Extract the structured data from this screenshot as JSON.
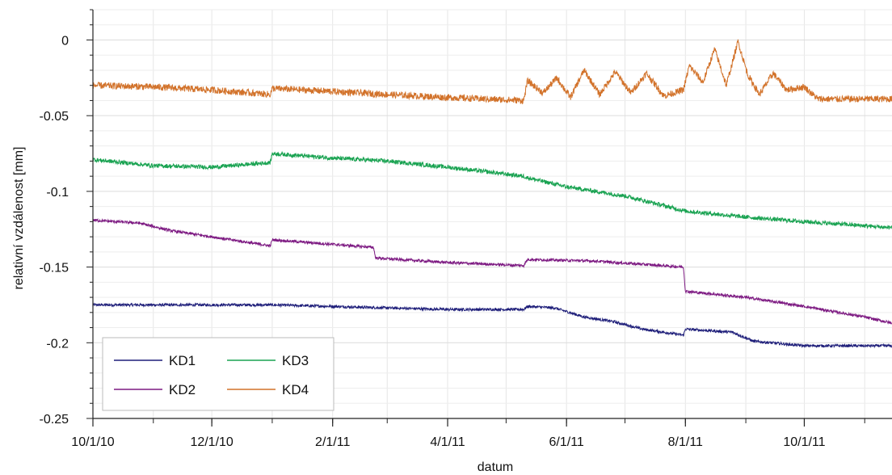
{
  "chart_data": {
    "type": "line",
    "title": "",
    "xlabel": "datum",
    "ylabel": "relativní vzdálenost [mm]",
    "xlim": [
      "2010-10-01",
      "2011-11-15"
    ],
    "ylim": [
      -0.25,
      0.02
    ],
    "grid": true,
    "legend_position": "bottom-left",
    "x_tick_labels": [
      "10/1/10",
      "12/1/10",
      "2/1/11",
      "4/1/11",
      "6/1/11",
      "8/1/11",
      "10/1/11"
    ],
    "x_tick_dates": [
      "2010-10-01",
      "2010-12-01",
      "2011-02-01",
      "2011-04-01",
      "2011-06-01",
      "2011-08-01",
      "2011-10-01"
    ],
    "y_tick_values": [
      0,
      -0.05,
      -0.1,
      -0.15,
      -0.2,
      -0.25
    ],
    "y_tick_labels": [
      "0",
      "-0.05",
      "-0.1",
      "-0.15",
      "-0.2",
      "-0.25"
    ],
    "series": [
      {
        "name": "KD1",
        "color": "#1f1f7a",
        "points": [
          [
            "2010-10-01",
            -0.175
          ],
          [
            "2010-11-01",
            -0.175
          ],
          [
            "2010-12-01",
            -0.175
          ],
          [
            "2011-01-01",
            -0.175
          ],
          [
            "2011-02-01",
            -0.176
          ],
          [
            "2011-03-01",
            -0.177
          ],
          [
            "2011-04-01",
            -0.178
          ],
          [
            "2011-05-10",
            -0.178
          ],
          [
            "2011-05-12",
            -0.176
          ],
          [
            "2011-05-26",
            -0.177
          ],
          [
            "2011-06-10",
            -0.183
          ],
          [
            "2011-06-25",
            -0.186
          ],
          [
            "2011-07-10",
            -0.191
          ],
          [
            "2011-07-31",
            -0.195
          ],
          [
            "2011-08-01",
            -0.191
          ],
          [
            "2011-08-25",
            -0.193
          ],
          [
            "2011-09-05",
            -0.199
          ],
          [
            "2011-10-01",
            -0.202
          ],
          [
            "2011-11-15",
            -0.202
          ]
        ]
      },
      {
        "name": "KD2",
        "color": "#7d1a82",
        "points": [
          [
            "2010-10-01",
            -0.119
          ],
          [
            "2010-10-25",
            -0.121
          ],
          [
            "2010-11-10",
            -0.126
          ],
          [
            "2010-12-01",
            -0.13
          ],
          [
            "2010-12-31",
            -0.136
          ],
          [
            "2011-01-01",
            -0.132
          ],
          [
            "2011-02-01",
            -0.135
          ],
          [
            "2011-02-22",
            -0.137
          ],
          [
            "2011-02-23",
            -0.144
          ],
          [
            "2011-04-01",
            -0.147
          ],
          [
            "2011-05-10",
            -0.149
          ],
          [
            "2011-05-12",
            -0.145
          ],
          [
            "2011-06-15",
            -0.146
          ],
          [
            "2011-07-31",
            -0.15
          ],
          [
            "2011-08-01",
            -0.166
          ],
          [
            "2011-09-01",
            -0.17
          ],
          [
            "2011-10-01",
            -0.176
          ],
          [
            "2011-11-01",
            -0.183
          ],
          [
            "2011-11-15",
            -0.187
          ]
        ]
      },
      {
        "name": "KD3",
        "color": "#1aa352",
        "points": [
          [
            "2010-10-01",
            -0.079
          ],
          [
            "2010-11-01",
            -0.083
          ],
          [
            "2010-12-01",
            -0.084
          ],
          [
            "2010-12-31",
            -0.081
          ],
          [
            "2011-01-01",
            -0.075
          ],
          [
            "2011-02-01",
            -0.078
          ],
          [
            "2011-03-01",
            -0.08
          ],
          [
            "2011-04-01",
            -0.084
          ],
          [
            "2011-05-10",
            -0.09
          ],
          [
            "2011-05-12",
            -0.091
          ],
          [
            "2011-06-01",
            -0.097
          ],
          [
            "2011-07-01",
            -0.103
          ],
          [
            "2011-08-01",
            -0.113
          ],
          [
            "2011-09-01",
            -0.117
          ],
          [
            "2011-10-01",
            -0.12
          ],
          [
            "2011-11-15",
            -0.124
          ]
        ]
      },
      {
        "name": "KD4",
        "color": "#d2722a",
        "points": [
          [
            "2010-10-01",
            -0.03
          ],
          [
            "2010-11-01",
            -0.031
          ],
          [
            "2010-12-01",
            -0.033
          ],
          [
            "2010-12-31",
            -0.036
          ],
          [
            "2011-01-01",
            -0.032
          ],
          [
            "2011-02-01",
            -0.034
          ],
          [
            "2011-03-01",
            -0.036
          ],
          [
            "2011-04-01",
            -0.038
          ],
          [
            "2011-05-10",
            -0.04
          ],
          [
            "2011-05-12",
            -0.027
          ],
          [
            "2011-05-20",
            -0.035
          ],
          [
            "2011-05-27",
            -0.025
          ],
          [
            "2011-06-03",
            -0.038
          ],
          [
            "2011-06-10",
            -0.02
          ],
          [
            "2011-06-18",
            -0.036
          ],
          [
            "2011-06-26",
            -0.021
          ],
          [
            "2011-07-04",
            -0.035
          ],
          [
            "2011-07-12",
            -0.022
          ],
          [
            "2011-07-21",
            -0.037
          ],
          [
            "2011-07-31",
            -0.033
          ],
          [
            "2011-08-03",
            -0.017
          ],
          [
            "2011-08-10",
            -0.028
          ],
          [
            "2011-08-16",
            -0.006
          ],
          [
            "2011-08-22",
            -0.03
          ],
          [
            "2011-08-28",
            -0.001
          ],
          [
            "2011-09-02",
            -0.023
          ],
          [
            "2011-09-08",
            -0.036
          ],
          [
            "2011-09-15",
            -0.022
          ],
          [
            "2011-09-22",
            -0.033
          ],
          [
            "2011-10-01",
            -0.031
          ],
          [
            "2011-10-08",
            -0.039
          ],
          [
            "2011-11-15",
            -0.039
          ]
        ]
      }
    ]
  }
}
